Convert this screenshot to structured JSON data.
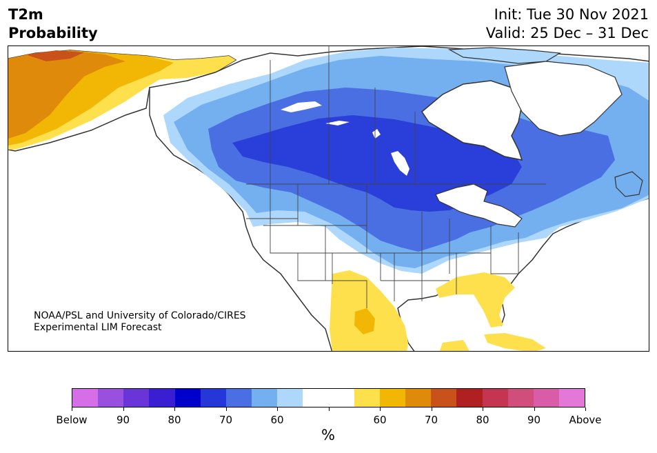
{
  "header": {
    "title_line1": "T2m",
    "title_line2": "Probability",
    "init": "Init: Tue 30 Nov 2021",
    "valid": "Valid: 25 Dec – 31 Dec"
  },
  "map": {
    "credit_line1": "NOAA/PSL and University of Colorado/CIRES",
    "credit_line2": "Experimental LIM Forecast",
    "colors": {
      "below_60": "#add8fb",
      "below_70": "#74aff0",
      "below_80": "#4a6fe3",
      "below_90": "#2a3fd9",
      "neutral": "#ffffff",
      "above_60": "#fde04c",
      "above_70": "#f2b705",
      "above_80": "#e08a0c",
      "above_90": "#c8521a",
      "coastline": "#333333",
      "borders": "#444444"
    }
  },
  "colorbar": {
    "colors": [
      "#d66ee8",
      "#9a50de",
      "#6a35d8",
      "#3a1ed4",
      "#0000cc",
      "#2537d8",
      "#4a6fe3",
      "#74aff0",
      "#add8fb",
      "#ffffff",
      "#ffffff",
      "#fde04c",
      "#f2b705",
      "#e08a0c",
      "#c8521a",
      "#b02020",
      "#c43552",
      "#d14e7c",
      "#d85ca8",
      "#e478d8"
    ],
    "labels": [
      "Below",
      "90",
      "80",
      "70",
      "60",
      "60",
      "70",
      "80",
      "90",
      "Above"
    ],
    "unit": "%"
  }
}
